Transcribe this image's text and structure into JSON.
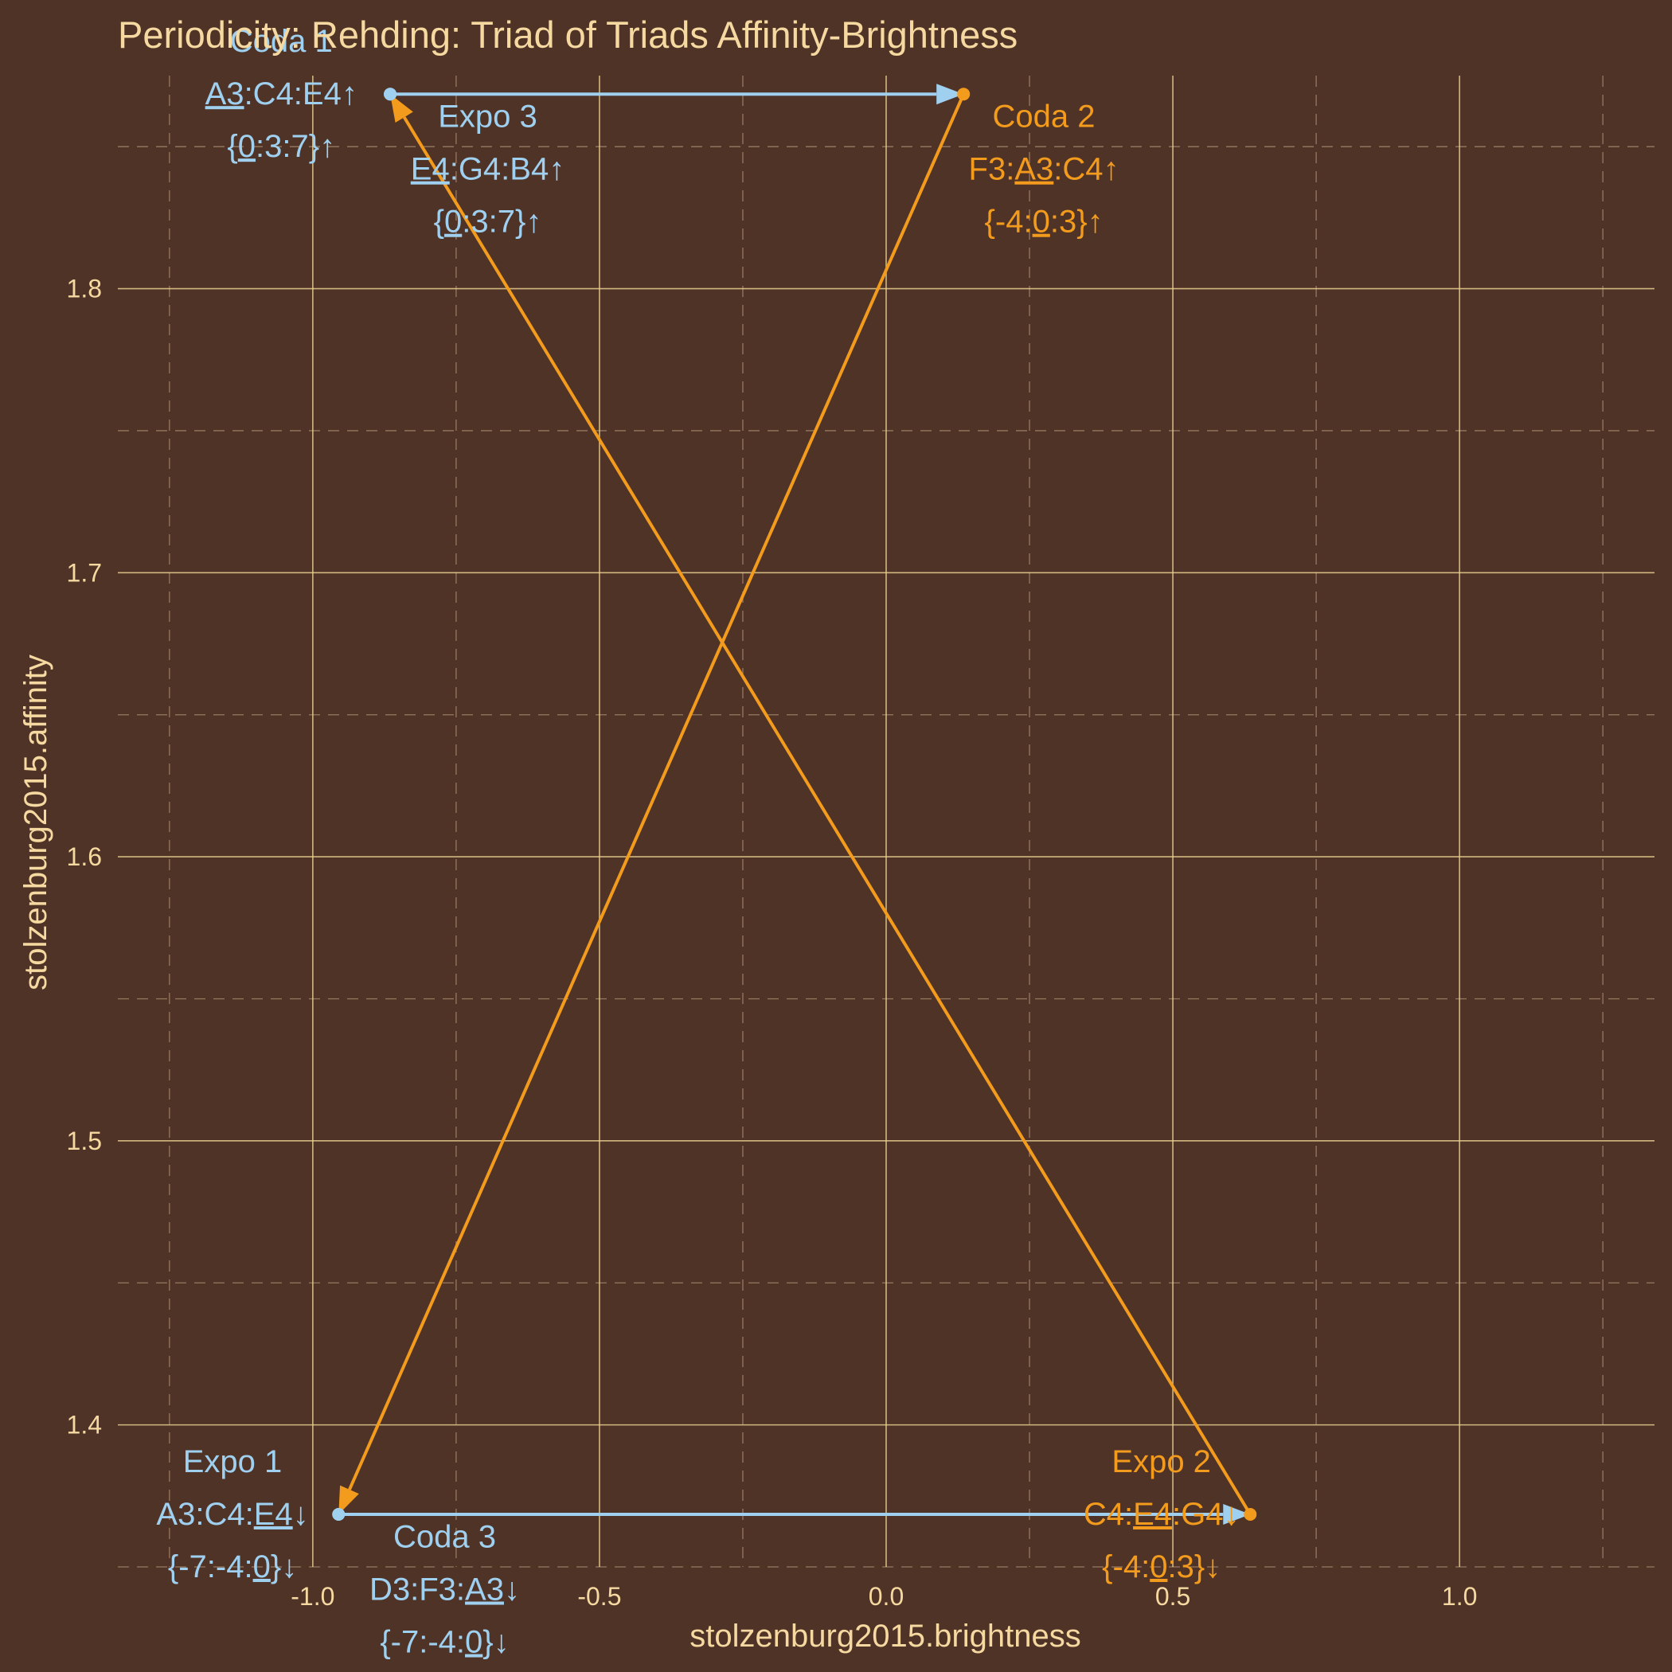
{
  "colors": {
    "background": "#503327",
    "text": "#f5d9a0",
    "blue": "#9fd0f0",
    "orange": "#f39b1c"
  },
  "chart_data": {
    "type": "scatter",
    "title": "Periodicity: Rehding: Triad of Triads Affinity-Brightness",
    "xlabel": "stolzenburg2015.brightness",
    "ylabel": "stolzenburg2015.affinity",
    "xlim": [
      -1.34,
      1.34
    ],
    "ylim": [
      1.35,
      1.875
    ],
    "x_ticks": [
      -1.0,
      -0.5,
      0.0,
      0.5,
      1.0
    ],
    "x_tick_labels": [
      "-1.0",
      "-0.5",
      "0.0",
      "0.5",
      "1.0"
    ],
    "y_ticks": [
      1.4,
      1.5,
      1.6,
      1.7,
      1.8
    ],
    "y_tick_labels": [
      "1.4",
      "1.5",
      "1.6",
      "1.7",
      "1.8"
    ],
    "x_minor": [
      -1.25,
      -0.75,
      -0.25,
      0.25,
      0.75,
      1.25
    ],
    "y_minor": [
      1.35,
      1.45,
      1.55,
      1.65,
      1.75,
      1.85
    ],
    "grid": true,
    "points": [
      {
        "id": "expo1",
        "x": -0.955,
        "y": 1.3685,
        "color": "blue"
      },
      {
        "id": "expo2",
        "x": 0.635,
        "y": 1.3685,
        "color": "orange"
      },
      {
        "id": "expo3",
        "x": -0.865,
        "y": 1.8685,
        "color": "blue"
      },
      {
        "id": "coda1",
        "x": -0.865,
        "y": 1.8685,
        "color": "blue"
      },
      {
        "id": "coda2",
        "x": 0.135,
        "y": 1.8685,
        "color": "orange"
      },
      {
        "id": "coda3",
        "x": -0.955,
        "y": 1.3685,
        "color": "blue"
      }
    ],
    "segments": [
      {
        "from": [
          -0.955,
          1.3685
        ],
        "to": [
          0.635,
          1.3685
        ],
        "color": "blue"
      },
      {
        "from": [
          0.635,
          1.3685
        ],
        "to": [
          -0.865,
          1.8685
        ],
        "color": "orange"
      },
      {
        "from": [
          -0.865,
          1.8685
        ],
        "to": [
          0.135,
          1.8685
        ],
        "color": "blue"
      },
      {
        "from": [
          0.135,
          1.8685
        ],
        "to": [
          -0.955,
          1.3685
        ],
        "color": "orange"
      }
    ],
    "labels": [
      {
        "id": "expo1",
        "x": -1.14,
        "y": 1.3685,
        "color": "blue",
        "name": "Expo 1",
        "notes": [
          [
            "A3:C4:",
            false
          ],
          [
            "E4",
            true
          ],
          [
            "↓",
            false
          ]
        ],
        "intervals": [
          [
            "{-7:-4:",
            false
          ],
          [
            "0",
            true
          ],
          [
            "}↓",
            false
          ]
        ]
      },
      {
        "id": "expo2",
        "x": 0.48,
        "y": 1.3685,
        "color": "orange",
        "name": "Expo 2",
        "notes": [
          [
            "C4:",
            false
          ],
          [
            "E4",
            true
          ],
          [
            ":G4↓",
            false
          ]
        ],
        "intervals": [
          [
            "{-4:",
            false
          ],
          [
            "0",
            true
          ],
          [
            ":3}↓",
            false
          ]
        ]
      },
      {
        "id": "expo3",
        "x": -0.695,
        "y": 1.842,
        "color": "blue",
        "name": "Expo 3",
        "notes": [
          [
            "E4",
            true
          ],
          [
            ":G4:B4↑",
            false
          ]
        ],
        "intervals": [
          [
            "{",
            false
          ],
          [
            "0",
            true
          ],
          [
            ":3:7}↑",
            false
          ]
        ]
      },
      {
        "id": "coda1",
        "x": -1.055,
        "y": 1.8685,
        "color": "blue",
        "name": "Coda 1",
        "notes": [
          [
            "A3",
            true
          ],
          [
            ":C4:E4↑",
            false
          ]
        ],
        "intervals": [
          [
            "{",
            false
          ],
          [
            "0",
            true
          ],
          [
            ":3:7}↑",
            false
          ]
        ]
      },
      {
        "id": "coda2",
        "x": 0.275,
        "y": 1.842,
        "color": "orange",
        "name": "Coda 2",
        "notes": [
          [
            "F3:",
            false
          ],
          [
            "A3",
            true
          ],
          [
            ":C4↑",
            false
          ]
        ],
        "intervals": [
          [
            "{-4:",
            false
          ],
          [
            "0",
            true
          ],
          [
            ":3}↑",
            false
          ]
        ]
      },
      {
        "id": "coda3",
        "x": -0.77,
        "y": 1.342,
        "color": "blue",
        "name": "Coda 3",
        "notes": [
          [
            "D3:F3:",
            false
          ],
          [
            "A3",
            true
          ],
          [
            "↓",
            false
          ]
        ],
        "intervals": [
          [
            "{-7:-4:",
            false
          ],
          [
            "0",
            true
          ],
          [
            "}↓",
            false
          ]
        ]
      }
    ]
  }
}
